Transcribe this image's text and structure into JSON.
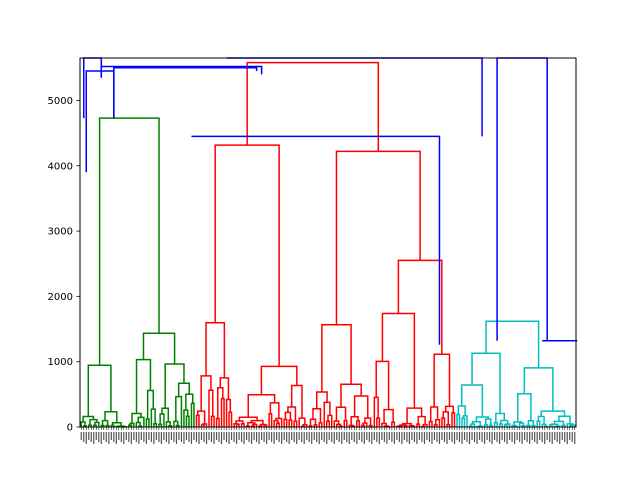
{
  "chart_data": {
    "type": "dendrogram",
    "title": "",
    "xlabel": "",
    "ylabel": "",
    "ylim": [
      0,
      5650
    ],
    "yticks": [
      0,
      1000,
      2000,
      3000,
      4000,
      5000
    ],
    "ytick_labels": [
      "0",
      "1000",
      "2000",
      "3000",
      "4000",
      "5000"
    ],
    "grid": false,
    "leaf_count": 198,
    "colors": {
      "above_threshold": "#0000ff",
      "cluster_green": "#008000",
      "cluster_red": "#ff0000",
      "cluster_cyan": "#00bfbf",
      "axes": "#000000",
      "background": "#ffffff"
    },
    "clusters": [
      {
        "color": "cluster_green",
        "leaf_range": [
          0,
          46
        ],
        "height": 4730
      },
      {
        "color": "cluster_red",
        "leaf_range": [
          46,
          150
        ],
        "height": 5580
      },
      {
        "color": "cluster_cyan",
        "leaf_range": [
          150,
          198
        ],
        "height": 1620
      }
    ],
    "upper_links": [
      {
        "x": [
          1,
          1,
          8,
          8
        ],
        "y": [
          4730,
          5650,
          5650,
          5350
        ],
        "color": "above_threshold"
      },
      {
        "x": [
          2,
          2,
          13,
          13
        ],
        "y": [
          3900,
          5450,
          5450,
          4730
        ],
        "color": "above_threshold"
      },
      {
        "x": [
          8,
          8,
          72,
          72
        ],
        "y": [
          5350,
          5520,
          5520,
          5400
        ],
        "color": "above_threshold"
      },
      {
        "x": [
          13,
          13,
          70,
          70
        ],
        "y": [
          4730,
          5500,
          5500,
          5450
        ],
        "color": "above_threshold"
      },
      {
        "x": [
          44,
          44,
          143,
          143
        ],
        "y": [
          4450,
          4450,
          4450,
          1260
        ],
        "color": "above_threshold"
      },
      {
        "x": [
          58,
          58,
          160,
          160
        ],
        "y": [
          5650,
          5650,
          5650,
          4450
        ],
        "color": "above_threshold"
      },
      {
        "x": [
          166,
          166,
          186,
          186
        ],
        "y": [
          1320,
          5650,
          5650,
          1320
        ],
        "color": "above_threshold"
      },
      {
        "x": [
          184,
          184,
          198,
          198
        ],
        "y": [
          1320,
          1320,
          1320,
          1320
        ],
        "color": "above_threshold"
      }
    ]
  }
}
